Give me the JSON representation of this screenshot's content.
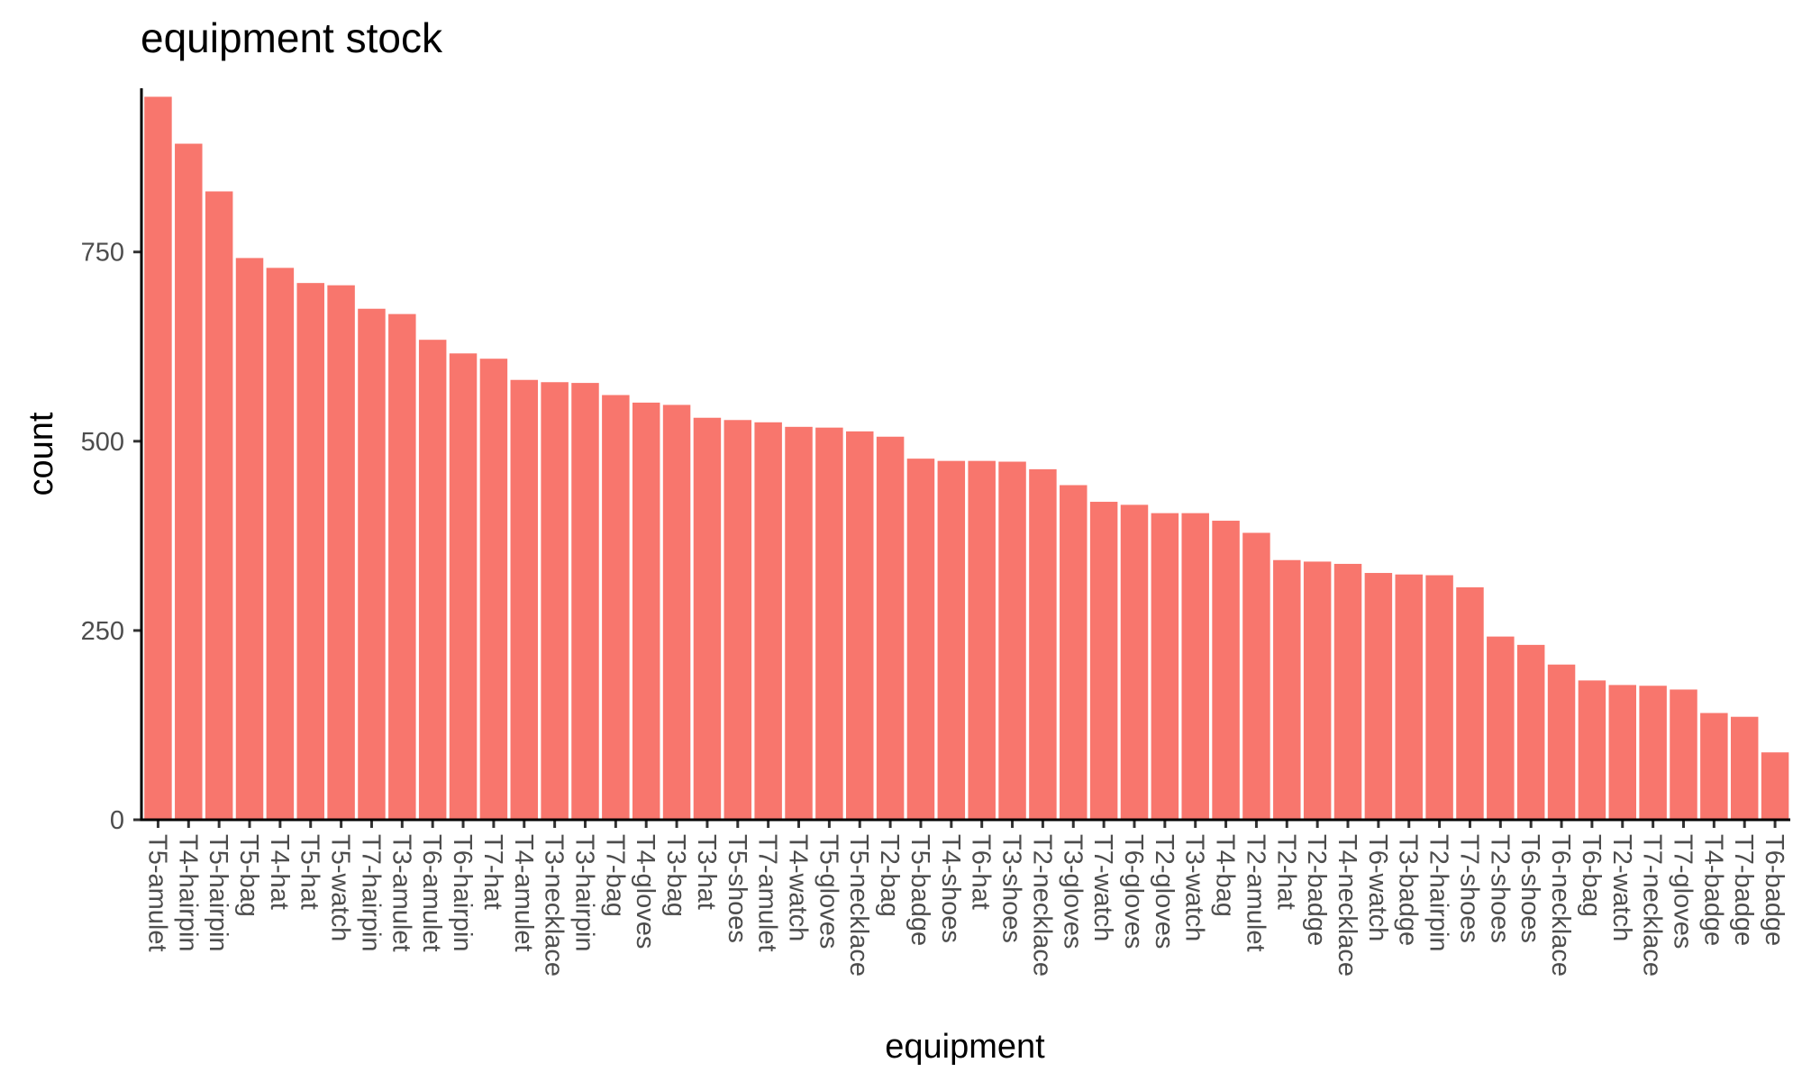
{
  "chart_data": {
    "type": "bar",
    "title": "equipment stock",
    "xlabel": "equipment",
    "ylabel": "count",
    "ylim": [
      0,
      980
    ],
    "yticks": [
      0,
      250,
      500,
      750
    ],
    "grid": false,
    "bar_color": "#F8766D",
    "categories": [
      "T5-amulet",
      "T4-hairpin",
      "T5-hairpin",
      "T5-bag",
      "T4-hat",
      "T5-hat",
      "T5-watch",
      "T7-hairpin",
      "T3-amulet",
      "T6-amulet",
      "T6-hairpin",
      "T7-hat",
      "T4-amulet",
      "T3-necklace",
      "T3-hairpin",
      "T7-bag",
      "T4-gloves",
      "T3-bag",
      "T3-hat",
      "T5-shoes",
      "T7-amulet",
      "T4-watch",
      "T5-gloves",
      "T5-necklace",
      "T2-bag",
      "T5-badge",
      "T4-shoes",
      "T6-hat",
      "T3-shoes",
      "T2-necklace",
      "T3-gloves",
      "T7-watch",
      "T6-gloves",
      "T2-gloves",
      "T3-watch",
      "T4-bag",
      "T2-amulet",
      "T2-hat",
      "T2-badge",
      "T4-necklace",
      "T6-watch",
      "T3-badge",
      "T2-hairpin",
      "T7-shoes",
      "T2-shoes",
      "T6-shoes",
      "T6-necklace",
      "T6-bag",
      "T2-watch",
      "T7-necklace",
      "T7-gloves",
      "T4-badge",
      "T7-badge",
      "T6-badge"
    ],
    "values": [
      955,
      893,
      830,
      742,
      729,
      709,
      706,
      675,
      668,
      634,
      616,
      609,
      581,
      578,
      577,
      561,
      551,
      548,
      531,
      528,
      525,
      519,
      518,
      513,
      506,
      477,
      474,
      474,
      473,
      463,
      442,
      420,
      416,
      405,
      405,
      395,
      379,
      343,
      341,
      338,
      326,
      324,
      323,
      307,
      242,
      231,
      205,
      184,
      178,
      177,
      172,
      141,
      136,
      89
    ]
  }
}
